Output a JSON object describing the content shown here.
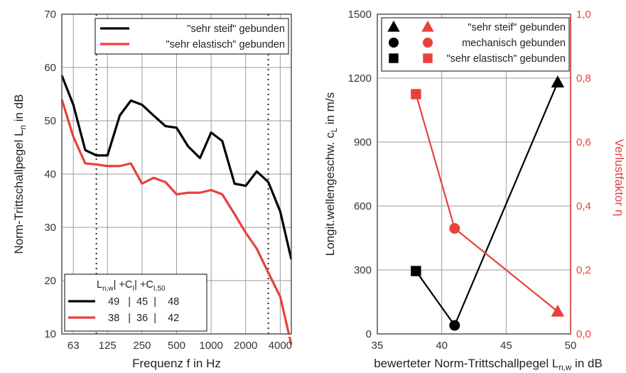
{
  "colors": {
    "black": "#000000",
    "red": "#e8413c",
    "grid": "#9a9a9a",
    "frame": "#555555"
  },
  "chart_data": [
    {
      "type": "line",
      "xlabel": "Frequenz f in Hz",
      "ylabel": "Norm-Trittschallpegel L",
      "ylabel_sub": "n",
      "ylabel_suffix": " in dB",
      "x_scale": "log",
      "xlim": [
        50,
        5000
      ],
      "ylim": [
        10,
        70
      ],
      "yticks": [
        10,
        20,
        30,
        40,
        50,
        60,
        70
      ],
      "xticks": [
        63,
        125,
        250,
        500,
        1000,
        2000,
        4000
      ],
      "grid": true,
      "reference_lines": [
        100,
        3150
      ],
      "x": [
        50,
        63,
        80,
        100,
        125,
        160,
        200,
        250,
        315,
        400,
        500,
        630,
        800,
        1000,
        1250,
        1600,
        2000,
        2500,
        3150,
        4000,
        5000
      ],
      "series": [
        {
          "name": "\"sehr steif\" gebunden",
          "color": "#000000",
          "values": [
            58.5,
            53,
            44.5,
            43.5,
            43.5,
            51,
            53.8,
            53,
            51,
            49,
            48.7,
            45.2,
            43,
            47.8,
            46.2,
            38.2,
            37.8,
            40.5,
            38.5,
            33,
            24
          ]
        },
        {
          "name": "\"sehr elastisch\" gebunden",
          "color": "#e8413c",
          "values": [
            54,
            47,
            42,
            41.8,
            41.5,
            41.5,
            42,
            38.2,
            39.3,
            38.5,
            36.2,
            36.5,
            36.5,
            37,
            36.2,
            32.5,
            29,
            26,
            21.5,
            17,
            8
          ]
        }
      ],
      "legend": {
        "placement": "top-right"
      },
      "table": {
        "header_parts": [
          "L",
          "n,w",
          "| +C",
          "I",
          "| +C",
          "I,50"
        ],
        "rows": [
          {
            "color": "#000000",
            "text": "49   |  45  |    48"
          },
          {
            "color": "#e8413c",
            "text": "38   |  36  |    42"
          }
        ],
        "placement": "bottom-left"
      }
    },
    {
      "type": "scatter",
      "xlabel": "bewerteter Norm-Trittschallpegel L",
      "xlabel_sub": "n,w",
      "xlabel_suffix": " in dB",
      "ylabel": "Longit.wellengeschw. c",
      "ylabel_sub": "L",
      "ylabel_suffix": " in m/s",
      "y2label": "Verlustfaktor η",
      "xlim": [
        35,
        50
      ],
      "xticks": [
        35,
        40,
        45,
        50
      ],
      "ylim": [
        0,
        1500
      ],
      "yticks": [
        0,
        300,
        600,
        900,
        1200,
        1500
      ],
      "y2lim": [
        0.0,
        1.0
      ],
      "y2ticks": [
        "0,0",
        "0,2",
        "0,4",
        "0,6",
        "0,8",
        "1,0"
      ],
      "grid": true,
      "series": [
        {
          "axis": "left",
          "color": "#000000",
          "points": [
            {
              "x": 38,
              "y": 295,
              "marker": "square"
            },
            {
              "x": 41,
              "y": 40,
              "marker": "circle"
            },
            {
              "x": 49,
              "y": 1180,
              "marker": "triangle"
            }
          ]
        },
        {
          "axis": "right",
          "color": "#e8413c",
          "points": [
            {
              "x": 38,
              "y": 0.75,
              "marker": "square"
            },
            {
              "x": 41,
              "y": 0.33,
              "marker": "circle"
            },
            {
              "x": 49,
              "y": 0.07,
              "marker": "triangle"
            }
          ]
        }
      ],
      "legend": {
        "placement": "top-right",
        "entries": [
          {
            "marker": "triangle",
            "label": "\"sehr steif\" gebunden"
          },
          {
            "marker": "circle",
            "label": "mechanisch gebunden"
          },
          {
            "marker": "square",
            "label": "\"sehr elastisch\" gebunden"
          }
        ]
      }
    }
  ]
}
